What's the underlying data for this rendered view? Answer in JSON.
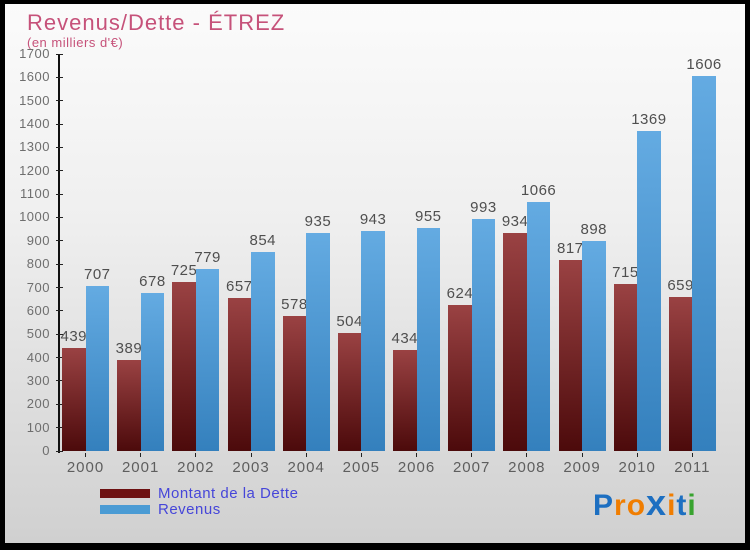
{
  "title": "Revenus/Dette - ÉTREZ",
  "subtitle": "(en milliers d'€)",
  "colors": {
    "title": "#c6527a",
    "background_top": "#fbfbfb",
    "background_bottom": "#d0d0d0",
    "frame_border": "#000000",
    "axis": "#111111",
    "tick_label": "#6e6e6e",
    "value_label": "#4f4f4f",
    "year_label": "#5e5e5e",
    "legend_text": "#4646d9"
  },
  "chart_data": {
    "type": "bar",
    "title": "Revenus/Dette - ÉTREZ",
    "subtitle": "(en milliers d'€)",
    "categories": [
      "2000",
      "2001",
      "2002",
      "2003",
      "2004",
      "2005",
      "2006",
      "2007",
      "2008",
      "2009",
      "2010",
      "2011"
    ],
    "series": [
      {
        "name": "Montant de la Dette",
        "values": [
          439,
          389,
          725,
          657,
          578,
          504,
          434,
          624,
          934,
          817,
          715,
          659
        ],
        "color_top": "#9a4243",
        "color_bottom": "#4c0a0b",
        "legend_color": "#6d1112"
      },
      {
        "name": "Revenus",
        "values": [
          707,
          678,
          779,
          854,
          935,
          943,
          955,
          993,
          1066,
          898,
          1369,
          1606
        ],
        "color_top": "#64abe2",
        "color_bottom": "#3480bd",
        "legend_color": "#4a9bd4"
      }
    ],
    "xlabel": "",
    "ylabel": "",
    "ylim": [
      0,
      1700
    ],
    "ytick_step": 100,
    "grid": false,
    "legend_position": "bottom-left",
    "value_labels_shown": true
  },
  "logo": {
    "name": "Proxiti",
    "letters": [
      {
        "char": "P",
        "color": "#1d6fc1"
      },
      {
        "char": "r",
        "color": "#f07d00"
      },
      {
        "char": "o",
        "color": "#f07d00"
      },
      {
        "char": "x",
        "color": "#1d6fc1",
        "big": true
      },
      {
        "char": "i",
        "color": "#f07d00"
      },
      {
        "char": "t",
        "color": "#1d6fc1"
      },
      {
        "char": "i",
        "color": "#38a32f"
      }
    ]
  }
}
